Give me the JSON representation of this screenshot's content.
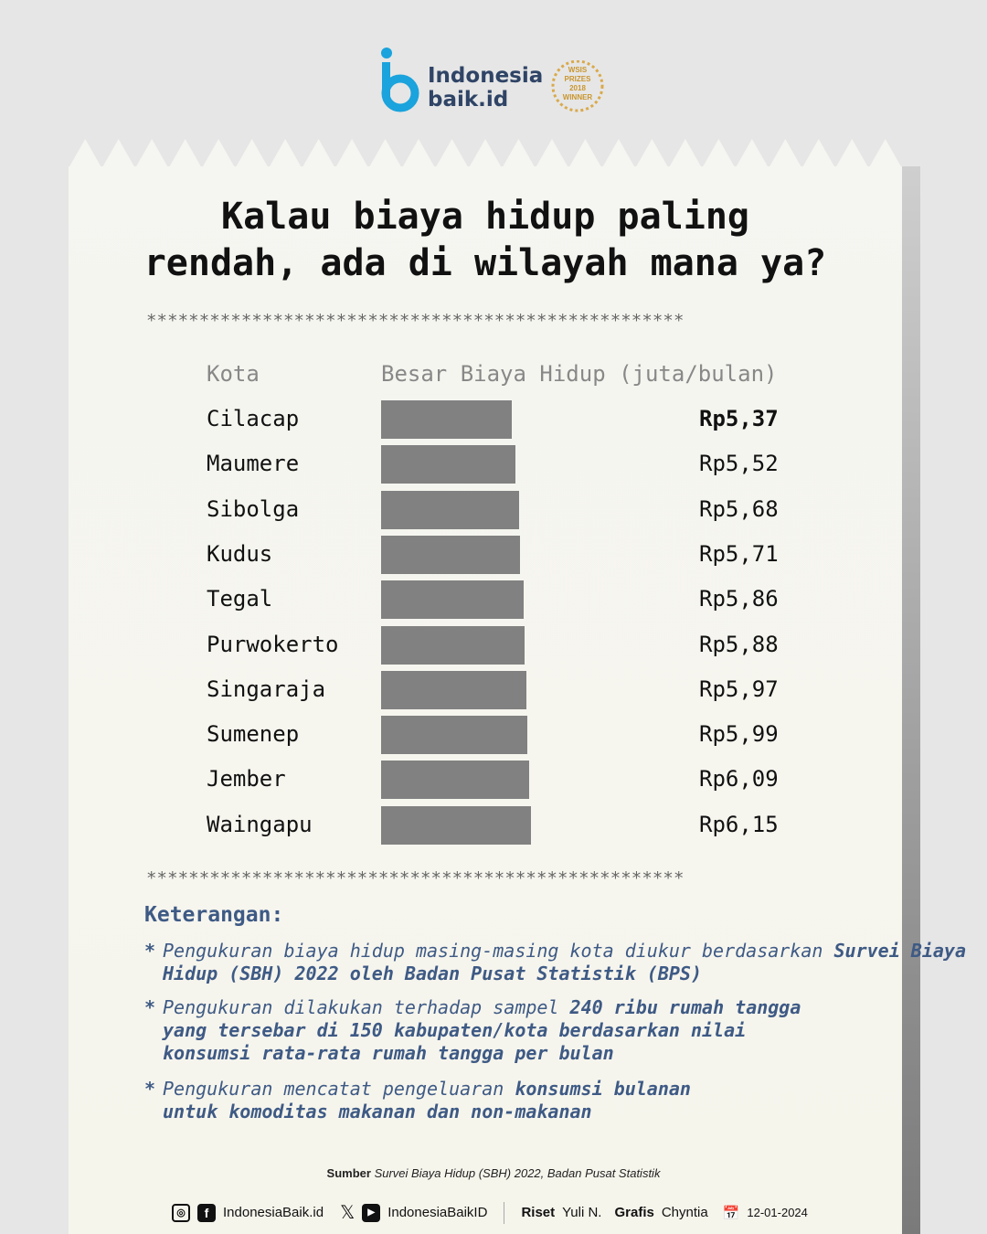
{
  "brand": {
    "name_line1": "Indonesia",
    "name_line2": "baik.id",
    "award": "WSIS PRIZES 2018 WINNER"
  },
  "title_line1": "Kalau biaya hidup paling",
  "title_line2": "rendah, ada di wilayah mana ya?",
  "separator": "***************************************************",
  "chart_data": {
    "type": "bar",
    "orientation": "horizontal",
    "column_headers": [
      "Kota",
      "Besar Biaya Hidup (juta/bulan)"
    ],
    "categories": [
      "Cilacap",
      "Maumere",
      "Sibolga",
      "Kudus",
      "Tegal",
      "Purwokerto",
      "Singaraja",
      "Sumenep",
      "Jember",
      "Waingapu"
    ],
    "values": [
      5.37,
      5.52,
      5.68,
      5.71,
      5.86,
      5.88,
      5.97,
      5.99,
      6.09,
      6.15
    ],
    "value_labels": [
      "Rp5,37",
      "Rp5,52",
      "Rp5,68",
      "Rp5,71",
      "Rp5,86",
      "Rp5,88",
      "Rp5,97",
      "Rp5,99",
      "Rp6,09",
      "Rp6,15"
    ],
    "xlim": [
      0,
      6.15
    ],
    "bar_color": "#818181"
  },
  "notes": {
    "heading": "Keterangan:",
    "items": [
      {
        "plain": "Pengukuran biaya hidup masing-masing kota diukur berdasarkan ",
        "bold": "Survei Biaya Hidup (SBH) 2022 oleh Badan Pusat Statistik (BPS)"
      },
      {
        "plain": "Pengukuran dilakukan terhadap sampel ",
        "bold": "240 ribu rumah tangga yang tersebar di 150 kabupaten/kota berdasarkan nilai konsumsi rata-rata rumah tangga per bulan"
      },
      {
        "plain": "Pengukuran mencatat pengeluaran ",
        "bold": "konsumsi bulanan untuk komoditas makanan dan non-makanan"
      }
    ]
  },
  "source": {
    "label": "Sumber",
    "text": "Survei Biaya Hidup (SBH) 2022, Badan Pusat Statistik"
  },
  "footer": {
    "handle1": "IndonesiaBaik.id",
    "handle2": "IndonesiaBaikID",
    "riset_label": "Riset",
    "riset": "Yuli N.",
    "grafis_label": "Grafis",
    "grafis": "Chyntia",
    "date": "12-01-2024"
  }
}
